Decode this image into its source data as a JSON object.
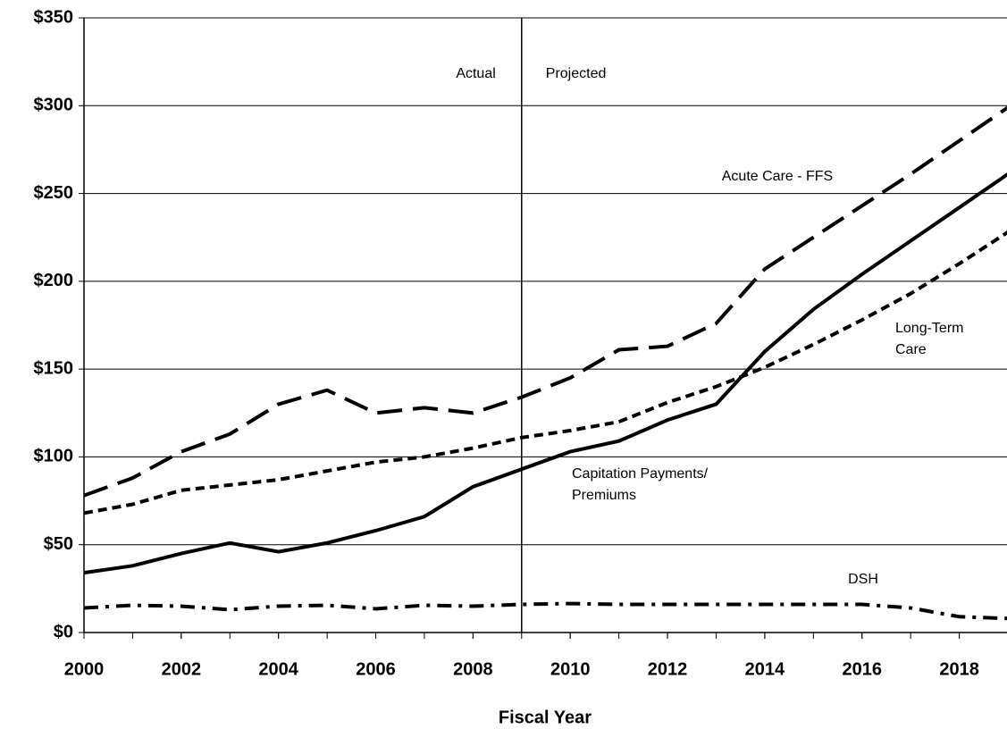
{
  "chart_data": {
    "type": "line",
    "x": [
      2000,
      2001,
      2002,
      2003,
      2004,
      2005,
      2006,
      2007,
      2008,
      2009,
      2010,
      2011,
      2012,
      2013,
      2014,
      2015,
      2016,
      2017,
      2018,
      2019
    ],
    "series": [
      {
        "name": "Acute Care - FFS",
        "color": "#000000",
        "values": [
          78,
          88,
          103,
          113,
          130,
          138,
          125,
          128,
          125,
          134,
          145,
          161,
          163,
          176,
          207,
          225,
          243,
          261,
          280,
          299
        ]
      },
      {
        "name": "Long-Term Care",
        "color": "#000000",
        "values": [
          68,
          73,
          81,
          84,
          87,
          92,
          97,
          100,
          105,
          111,
          115,
          120,
          131,
          140,
          151,
          164,
          178,
          193,
          210,
          228
        ]
      },
      {
        "name": "Capitation Payments/ Premiums",
        "color": "#000000",
        "values": [
          34,
          38,
          45,
          51,
          46,
          51,
          58,
          66,
          83,
          93,
          103,
          109,
          121,
          130,
          160,
          184,
          204,
          223,
          242,
          261
        ]
      },
      {
        "name": "DSH",
        "color": "#000000",
        "values": [
          14,
          15.5,
          15,
          13,
          15,
          15.5,
          13.5,
          15.5,
          15,
          16,
          16.5,
          16,
          16,
          16,
          16,
          16,
          16,
          14,
          9,
          8
        ]
      }
    ],
    "xlabel": "Fiscal Year",
    "annotations": [
      "Actual",
      "Projected"
    ],
    "xlim": [
      2000,
      2019
    ],
    "xticks": [
      2000,
      2002,
      2004,
      2006,
      2008,
      2010,
      2012,
      2014,
      2016,
      2018
    ],
    "ylim": [
      0,
      350
    ],
    "yticks": [
      {
        "value": 0,
        "label": "$0"
      },
      {
        "value": 50,
        "label": "$50"
      },
      {
        "value": 100,
        "label": "$100"
      },
      {
        "value": 150,
        "label": "$150"
      },
      {
        "value": 200,
        "label": "$200"
      },
      {
        "value": 250,
        "label": "$250"
      },
      {
        "value": 300,
        "label": "$300"
      },
      {
        "value": 350,
        "label": "$350"
      }
    ],
    "divider": 2009,
    "grid": true
  }
}
